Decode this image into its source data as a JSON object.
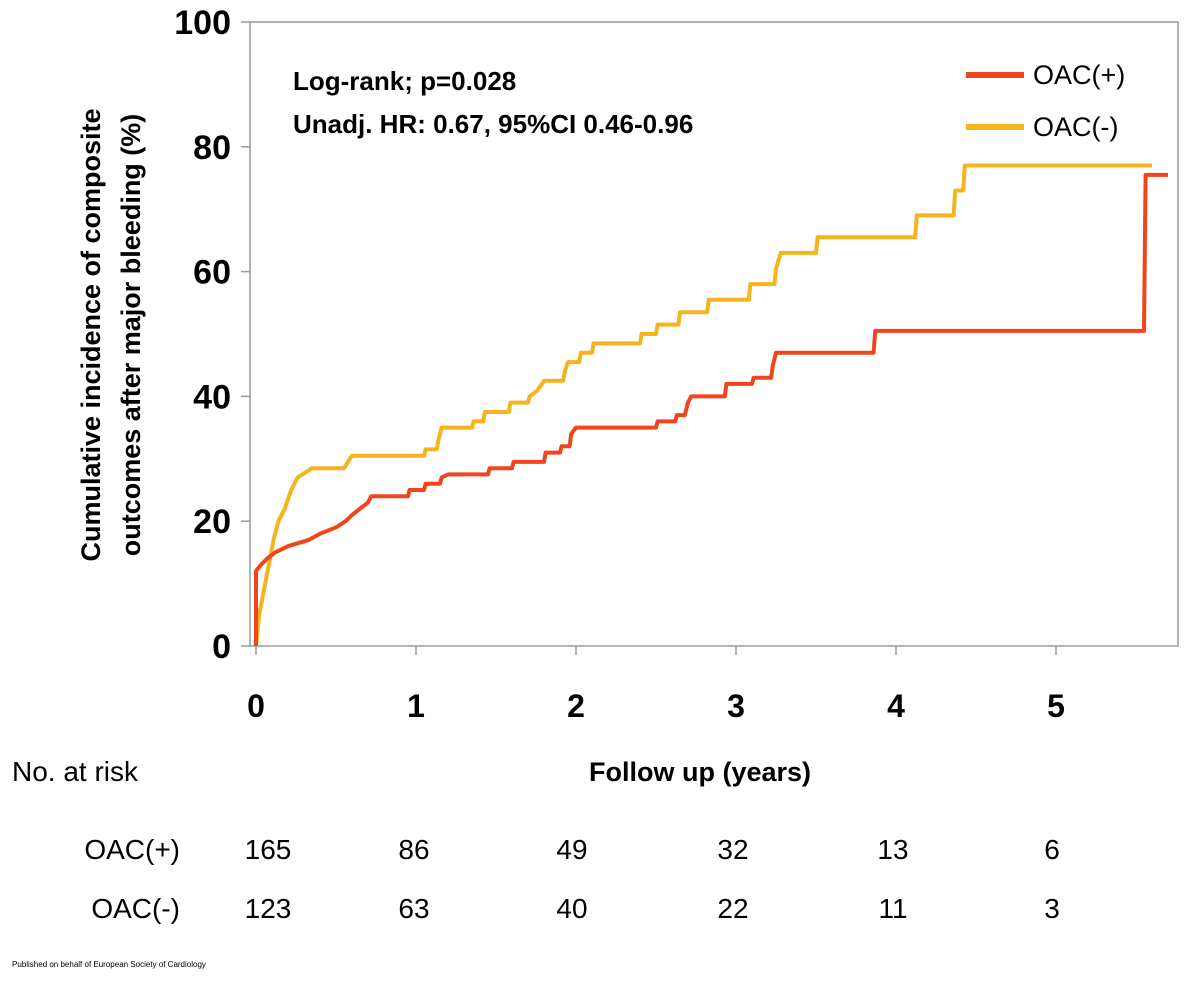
{
  "chart_data": {
    "type": "line",
    "subtype": "kaplan-meier-cumulative-incidence",
    "ylabel_line1": "Cumulative incidence of  composite",
    "ylabel_line2": "outcomes after major bleeding (%)",
    "xlabel": "Follow up (years)",
    "xlim": [
      0,
      5.8
    ],
    "ylim": [
      0,
      100
    ],
    "x_ticks": [
      "0",
      "1",
      "2",
      "3",
      "4",
      "5"
    ],
    "y_ticks": [
      "0",
      "20",
      "40",
      "60",
      "80",
      "100"
    ],
    "grid": false,
    "legend_position": "top-right",
    "annotations": [
      "Log-rank; p=0.028",
      "Unadj. HR: 0.67, 95%CI 0.46-0.96"
    ],
    "series": [
      {
        "name": "OAC(+)",
        "color": "#f0451b",
        "points": [
          [
            0,
            0
          ],
          [
            0,
            12
          ],
          [
            0.03,
            13
          ],
          [
            0.07,
            14
          ],
          [
            0.12,
            15
          ],
          [
            0.2,
            16
          ],
          [
            0.33,
            17
          ],
          [
            0.4,
            18
          ],
          [
            0.5,
            19
          ],
          [
            0.56,
            20
          ],
          [
            0.6,
            21
          ],
          [
            0.65,
            22
          ],
          [
            0.7,
            23
          ],
          [
            0.72,
            24
          ],
          [
            0.95,
            24
          ],
          [
            0.96,
            25
          ],
          [
            1.05,
            25
          ],
          [
            1.06,
            26
          ],
          [
            1.15,
            26
          ],
          [
            1.16,
            27
          ],
          [
            1.2,
            27.5
          ],
          [
            1.45,
            27.5
          ],
          [
            1.46,
            28.5
          ],
          [
            1.6,
            28.5
          ],
          [
            1.61,
            29.5
          ],
          [
            1.8,
            29.5
          ],
          [
            1.81,
            31
          ],
          [
            1.9,
            31
          ],
          [
            1.91,
            32
          ],
          [
            1.96,
            32
          ],
          [
            1.97,
            34
          ],
          [
            2.0,
            35
          ],
          [
            2.5,
            35
          ],
          [
            2.51,
            36
          ],
          [
            2.62,
            36
          ],
          [
            2.63,
            37
          ],
          [
            2.68,
            37
          ],
          [
            2.69,
            38
          ],
          [
            2.7,
            39
          ],
          [
            2.72,
            40
          ],
          [
            2.93,
            40
          ],
          [
            2.94,
            42
          ],
          [
            3.1,
            42
          ],
          [
            3.11,
            43
          ],
          [
            3.22,
            43
          ],
          [
            3.23,
            45
          ],
          [
            3.25,
            47
          ],
          [
            3.86,
            47
          ],
          [
            3.87,
            50.5
          ],
          [
            5.55,
            50.5
          ],
          [
            5.56,
            75.5
          ],
          [
            5.7,
            75.5
          ]
        ]
      },
      {
        "name": "OAC(-)",
        "color": "#f5b41e",
        "points": [
          [
            0,
            0
          ],
          [
            0.02,
            5
          ],
          [
            0.05,
            9
          ],
          [
            0.08,
            13
          ],
          [
            0.11,
            17
          ],
          [
            0.14,
            20
          ],
          [
            0.18,
            22
          ],
          [
            0.22,
            25
          ],
          [
            0.26,
            27
          ],
          [
            0.35,
            28.5
          ],
          [
            0.55,
            28.5
          ],
          [
            0.6,
            30.5
          ],
          [
            1.05,
            30.5
          ],
          [
            1.06,
            31.5
          ],
          [
            1.13,
            31.5
          ],
          [
            1.14,
            33
          ],
          [
            1.16,
            35
          ],
          [
            1.35,
            35
          ],
          [
            1.36,
            36
          ],
          [
            1.42,
            36
          ],
          [
            1.43,
            37.5
          ],
          [
            1.58,
            37.5
          ],
          [
            1.59,
            39
          ],
          [
            1.7,
            39
          ],
          [
            1.71,
            40
          ],
          [
            1.76,
            41
          ],
          [
            1.8,
            42.5
          ],
          [
            1.92,
            42.5
          ],
          [
            1.93,
            44
          ],
          [
            1.95,
            45.5
          ],
          [
            2.02,
            45.5
          ],
          [
            2.03,
            47
          ],
          [
            2.1,
            47
          ],
          [
            2.11,
            48.5
          ],
          [
            2.4,
            48.5
          ],
          [
            2.41,
            50
          ],
          [
            2.5,
            50
          ],
          [
            2.51,
            51.5
          ],
          [
            2.64,
            51.5
          ],
          [
            2.65,
            53.5
          ],
          [
            2.82,
            53.5
          ],
          [
            2.83,
            55.5
          ],
          [
            3.08,
            55.5
          ],
          [
            3.09,
            58
          ],
          [
            3.24,
            58
          ],
          [
            3.25,
            60.5
          ],
          [
            3.28,
            63
          ],
          [
            3.5,
            63
          ],
          [
            3.51,
            65.5
          ],
          [
            4.12,
            65.5
          ],
          [
            4.13,
            69
          ],
          [
            4.36,
            69
          ],
          [
            4.37,
            73
          ],
          [
            4.42,
            73
          ],
          [
            4.43,
            77
          ],
          [
            5.6,
            77
          ]
        ]
      }
    ]
  },
  "risk_table": {
    "title": "No. at risk",
    "rows": [
      {
        "label": "OAC(+)",
        "values": [
          "165",
          "86",
          "49",
          "32",
          "13",
          "6"
        ]
      },
      {
        "label": "OAC(-)",
        "values": [
          "123",
          "63",
          "40",
          "22",
          "11",
          "3"
        ]
      }
    ]
  },
  "footer": "Published on behalf of European Society of Cardiology"
}
